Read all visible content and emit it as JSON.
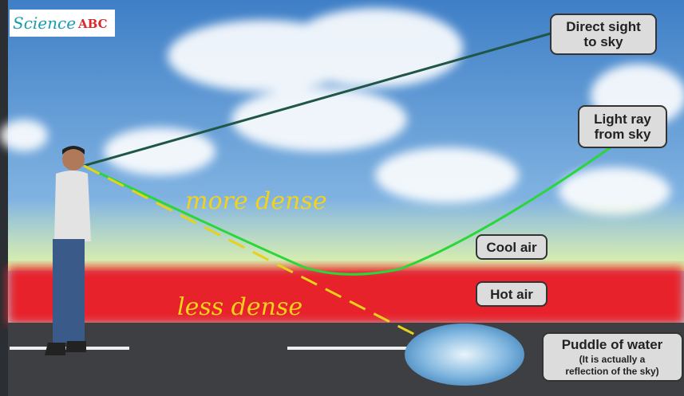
{
  "logo": {
    "script": "Science",
    "brand": "ABC"
  },
  "labels": {
    "direct_sight": [
      "Direct sight",
      "to sky"
    ],
    "light_ray": [
      "Light ray",
      "from sky"
    ],
    "cool_air": "Cool air",
    "hot_air": "Hot air",
    "puddle": {
      "title": "Puddle of water",
      "note": [
        "(It is actually a",
        "reflection of the sky)"
      ]
    }
  },
  "annotations": {
    "upper": "more dense",
    "lower": "less dense"
  }
}
